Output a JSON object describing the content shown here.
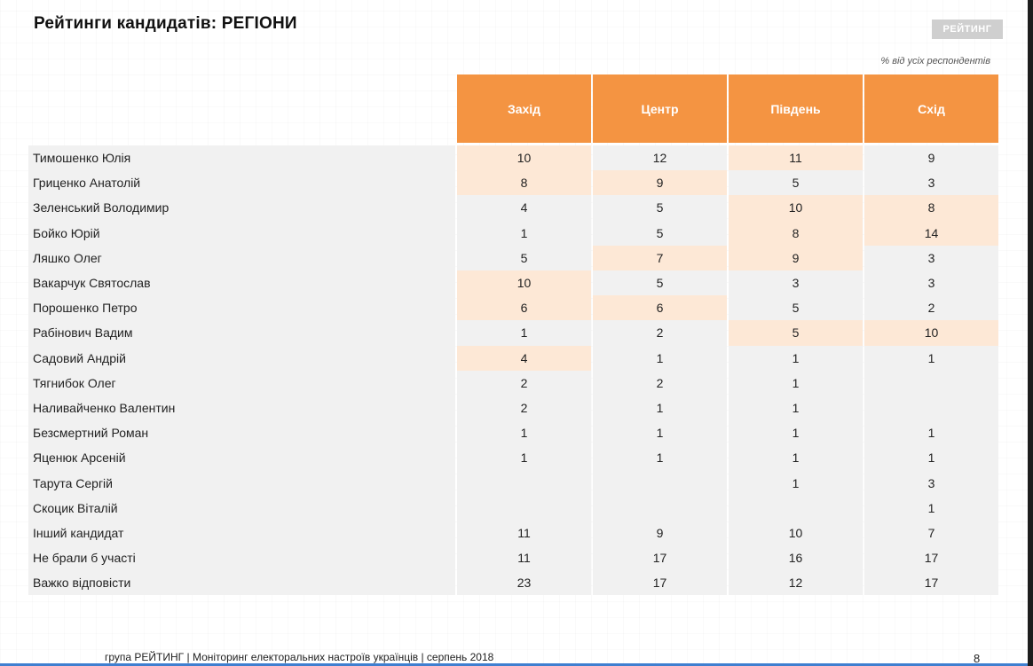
{
  "title": "Рейтинги кандидатів: РЕГІОНИ",
  "logo_text": "РЕЙТИНГ",
  "note": "% від усіх респондентів",
  "columns": [
    "Захід",
    "Центр",
    "Південь",
    "Схід"
  ],
  "colors": {
    "header": "#f49442",
    "highlight": "#fde8d6",
    "row": "#f1f1f1"
  },
  "rows": [
    {
      "name": "Тимошенко Юлія",
      "values": [
        "10",
        "12",
        "11",
        "9"
      ],
      "highlight": [
        true,
        false,
        true,
        false
      ]
    },
    {
      "name": "Гриценко Анатолій",
      "values": [
        "8",
        "9",
        "5",
        "3"
      ],
      "highlight": [
        true,
        true,
        false,
        false
      ]
    },
    {
      "name": "Зеленський Володимир",
      "values": [
        "4",
        "5",
        "10",
        "8"
      ],
      "highlight": [
        false,
        false,
        true,
        true
      ]
    },
    {
      "name": "Бойко Юрій",
      "values": [
        "1",
        "5",
        "8",
        "14"
      ],
      "highlight": [
        false,
        false,
        true,
        true
      ]
    },
    {
      "name": "Ляшко Олег",
      "values": [
        "5",
        "7",
        "9",
        "3"
      ],
      "highlight": [
        false,
        true,
        true,
        false
      ]
    },
    {
      "name": "Вакарчук Святослав",
      "values": [
        "10",
        "5",
        "3",
        "3"
      ],
      "highlight": [
        true,
        false,
        false,
        false
      ]
    },
    {
      "name": "Порошенко Петро",
      "values": [
        "6",
        "6",
        "5",
        "2"
      ],
      "highlight": [
        true,
        true,
        false,
        false
      ]
    },
    {
      "name": "Рабінович Вадим",
      "values": [
        "1",
        "2",
        "5",
        "10"
      ],
      "highlight": [
        false,
        false,
        true,
        true
      ]
    },
    {
      "name": "Садовий Андрій",
      "values": [
        "4",
        "1",
        "1",
        "1"
      ],
      "highlight": [
        true,
        false,
        false,
        false
      ]
    },
    {
      "name": "Тягнибок Олег",
      "values": [
        "2",
        "2",
        "1",
        ""
      ],
      "highlight": [
        false,
        false,
        false,
        false
      ]
    },
    {
      "name": "Наливайченко Валентин",
      "values": [
        "2",
        "1",
        "1",
        ""
      ],
      "highlight": [
        false,
        false,
        false,
        false
      ]
    },
    {
      "name": "Безсмертний Роман",
      "values": [
        "1",
        "1",
        "1",
        "1"
      ],
      "highlight": [
        false,
        false,
        false,
        false
      ]
    },
    {
      "name": "Яценюк Арсеній",
      "values": [
        "1",
        "1",
        "1",
        "1"
      ],
      "highlight": [
        false,
        false,
        false,
        false
      ]
    },
    {
      "name": "Тарута Сергій",
      "values": [
        "",
        "",
        "1",
        "3"
      ],
      "highlight": [
        false,
        false,
        false,
        false
      ]
    },
    {
      "name": "Скоцик Віталій",
      "values": [
        "",
        "",
        "",
        "1"
      ],
      "highlight": [
        false,
        false,
        false,
        false
      ]
    },
    {
      "name": "Інший кандидат",
      "values": [
        "11",
        "9",
        "10",
        "7"
      ],
      "highlight": [
        false,
        false,
        false,
        false
      ]
    },
    {
      "name": "Не брали б участі",
      "values": [
        "11",
        "17",
        "16",
        "17"
      ],
      "highlight": [
        false,
        false,
        false,
        false
      ]
    },
    {
      "name": "Важко відповісти",
      "values": [
        "23",
        "17",
        "12",
        "17"
      ],
      "highlight": [
        false,
        false,
        false,
        false
      ]
    }
  ],
  "footer": "група РЕЙТИНГ |  Моніторинг електоральних настроїв українців | серпень  2018",
  "page_number": "8"
}
